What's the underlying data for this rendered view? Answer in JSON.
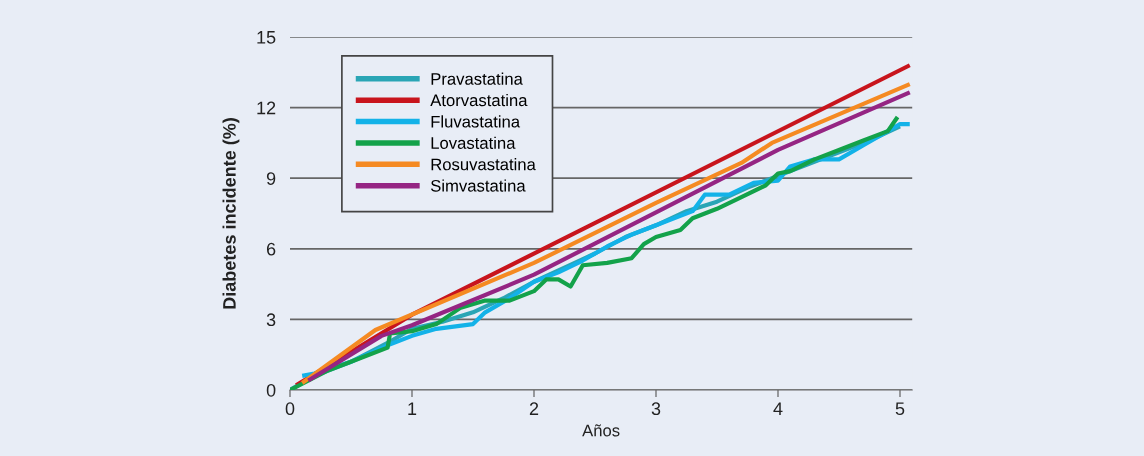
{
  "chart_data": {
    "type": "line",
    "xlabel": "Años",
    "ylabel": "Diabetes incidente (%)",
    "xlim": [
      0,
      5.1
    ],
    "xticks": [
      0,
      1,
      2,
      3,
      4,
      5
    ],
    "ylim": [
      0,
      15
    ],
    "yticks": [
      0,
      3,
      6,
      9,
      12,
      15
    ],
    "grid": "y",
    "legend": "top left",
    "marker": "none",
    "line_style": "solid",
    "series": [
      {
        "name": "Pravastatina",
        "color": "#2aa5b5",
        "x": [
          0,
          0.2,
          0.5,
          0.8,
          1,
          1.25,
          1.5,
          1.75,
          2,
          2.25,
          2.5,
          2.75,
          3,
          3.25,
          3.5,
          3.75,
          4,
          4.25,
          4.5,
          4.75,
          5
        ],
        "values": [
          0,
          0.6,
          1.2,
          2.0,
          2.6,
          2.9,
          3.3,
          3.9,
          4.6,
          5.2,
          5.8,
          6.5,
          7.0,
          7.6,
          8.0,
          8.6,
          9.1,
          9.6,
          10.1,
          10.6,
          11.2
        ]
      },
      {
        "name": "Atorvastatina",
        "color": "#c8151d",
        "x": [
          0.05,
          1,
          5.08
        ],
        "values": [
          0.2,
          3.2,
          13.8
        ]
      },
      {
        "name": "Fluvastatina",
        "color": "#13b2e8",
        "x": [
          0.1,
          0.2,
          0.5,
          0.8,
          1,
          1.2,
          1.5,
          1.6,
          1.8,
          2,
          2.2,
          2.4,
          2.6,
          2.8,
          3,
          3.3,
          3.4,
          3.6,
          3.8,
          4,
          4.1,
          4.3,
          4.5,
          4.7,
          5,
          5.08
        ],
        "values": [
          0.6,
          0.7,
          1.2,
          1.9,
          2.3,
          2.6,
          2.8,
          3.3,
          3.9,
          4.6,
          5.0,
          5.5,
          6.1,
          6.6,
          7.0,
          7.6,
          8.3,
          8.3,
          8.8,
          8.9,
          9.5,
          9.8,
          9.8,
          10.4,
          11.3,
          11.3
        ]
      },
      {
        "name": "Lovastatina",
        "color": "#13a24a",
        "x": [
          0,
          0.3,
          0.6,
          0.8,
          0.82,
          1,
          1.2,
          1.4,
          1.6,
          1.8,
          2,
          2.1,
          2.2,
          2.3,
          2.4,
          2.6,
          2.8,
          2.9,
          3,
          3.2,
          3.3,
          3.5,
          3.7,
          3.9,
          4,
          4.1,
          4.3,
          4.5,
          4.7,
          4.9,
          4.98
        ],
        "values": [
          0,
          0.8,
          1.4,
          1.8,
          2.4,
          2.5,
          2.8,
          3.5,
          3.8,
          3.8,
          4.2,
          4.7,
          4.7,
          4.4,
          5.3,
          5.4,
          5.6,
          6.2,
          6.5,
          6.8,
          7.3,
          7.7,
          8.2,
          8.7,
          9.2,
          9.3,
          9.8,
          10.2,
          10.6,
          11.0,
          11.6
        ]
      },
      {
        "name": "Rosuvastatina",
        "color": "#f58a22",
        "x": [
          0.1,
          0.7,
          2,
          3,
          3.7,
          3.95,
          5.08
        ],
        "values": [
          0.3,
          2.55,
          5.4,
          7.95,
          9.65,
          10.5,
          13.0
        ]
      },
      {
        "name": "Simvastatina",
        "color": "#952583",
        "x": [
          0.15,
          0.75,
          1,
          2,
          3,
          4,
          5.08
        ],
        "values": [
          0.4,
          2.3,
          2.75,
          4.9,
          7.55,
          10.2,
          12.65
        ]
      }
    ]
  }
}
